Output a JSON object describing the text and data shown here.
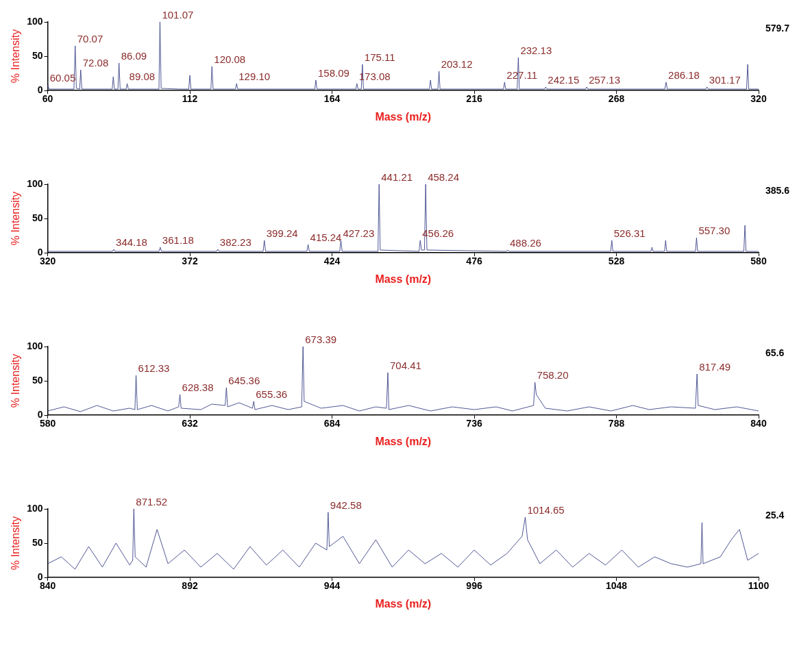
{
  "chart_data": [
    {
      "type": "line",
      "ylabel": "% Intensity",
      "xlabel": "Mass (m/z)",
      "color": "#3c4488",
      "marker": "none",
      "xlim": [
        60,
        320
      ],
      "xticks": [
        60,
        112,
        164,
        216,
        268,
        320
      ],
      "ylim": [
        0,
        100
      ],
      "yticks": [
        0,
        50,
        100
      ],
      "x": [
        60,
        60.05,
        60.5,
        65,
        69.6,
        70.07,
        70.5,
        71.7,
        72.08,
        72.5,
        80,
        83.6,
        84,
        84.4,
        85.7,
        86.09,
        86.5,
        88.7,
        89.08,
        89.5,
        95,
        100.7,
        101.07,
        101.5,
        108,
        111.6,
        112,
        112.4,
        119.7,
        120.08,
        120.5,
        128.7,
        129.1,
        129.5,
        140,
        157.7,
        158.09,
        158.5,
        172.7,
        173.08,
        173.5,
        174.7,
        175.11,
        175.5,
        190,
        199.6,
        200,
        200.4,
        202.7,
        203.12,
        203.5,
        215,
        226.7,
        227.11,
        227.5,
        231.7,
        232.13,
        232.5,
        241.7,
        242.15,
        242.6,
        256.7,
        257.13,
        257.6,
        270,
        285.7,
        286.18,
        286.6,
        300.7,
        301.17,
        301.6,
        315.6,
        316,
        316.4,
        320
      ],
      "values": [
        2,
        8,
        2,
        2,
        2,
        65,
        3,
        2,
        30,
        2,
        2,
        2,
        20,
        2,
        2,
        40,
        2,
        2,
        10,
        2,
        2,
        2,
        100,
        3,
        2,
        2,
        22,
        2,
        2,
        35,
        2,
        2,
        10,
        2,
        2,
        2,
        15,
        2,
        2,
        10,
        2,
        2,
        38,
        2,
        2,
        2,
        15,
        2,
        2,
        28,
        2,
        2,
        2,
        12,
        2,
        2,
        48,
        2,
        2,
        5,
        2,
        2,
        5,
        2,
        2,
        2,
        12,
        2,
        2,
        5,
        2,
        2,
        38,
        2,
        2
      ],
      "annotations": [
        "579.7",
        {
          "text": "60.05",
          "x": 60.05,
          "y": 8
        },
        {
          "text": "70.07",
          "x": 70.07,
          "y": 65
        },
        {
          "text": "72.08",
          "x": 72.08,
          "y": 30
        },
        {
          "text": "86.09",
          "x": 86.09,
          "y": 40
        },
        {
          "text": "89.08",
          "x": 89.08,
          "y": 10
        },
        {
          "text": "101.07",
          "x": 101.07,
          "y": 100
        },
        {
          "text": "120.08",
          "x": 120.08,
          "y": 35
        },
        {
          "text": "129.10",
          "x": 129.1,
          "y": 10
        },
        {
          "text": "158.09",
          "x": 158.09,
          "y": 15
        },
        {
          "text": "173.08",
          "x": 173.08,
          "y": 10
        },
        {
          "text": "175.11",
          "x": 175.11,
          "y": 38
        },
        {
          "text": "203.12",
          "x": 203.12,
          "y": 28
        },
        {
          "text": "227.11",
          "x": 227.11,
          "y": 12
        },
        {
          "text": "232.13",
          "x": 232.13,
          "y": 48
        },
        {
          "text": "242.15",
          "x": 242.15,
          "y": 5
        },
        {
          "text": "257.13",
          "x": 257.13,
          "y": 5
        },
        {
          "text": "286.18",
          "x": 286.18,
          "y": 12
        },
        {
          "text": "301.17",
          "x": 301.17,
          "y": 5
        }
      ]
    },
    {
      "type": "line",
      "ylabel": "% Intensity",
      "xlabel": "Mass (m/z)",
      "color": "#3c4488",
      "marker": "none",
      "xlim": [
        320,
        580
      ],
      "xticks": [
        320,
        372,
        424,
        476,
        528,
        580
      ],
      "ylim": [
        0,
        100
      ],
      "yticks": [
        0,
        50,
        100
      ],
      "x": [
        320,
        343.7,
        344.18,
        344.6,
        360.7,
        361.18,
        361.6,
        381.8,
        382.23,
        382.7,
        398.8,
        399.24,
        399.7,
        414.8,
        415.24,
        415.7,
        426.8,
        427.23,
        427.7,
        440.8,
        441.21,
        441.6,
        455.8,
        456.26,
        456.7,
        457.8,
        458.24,
        458.7,
        487.8,
        488.26,
        488.7,
        525.9,
        526.31,
        526.7,
        540.6,
        541,
        541.4,
        545.6,
        546,
        546.4,
        556.9,
        557.3,
        557.7,
        574.6,
        575,
        575.4,
        580
      ],
      "values": [
        2,
        2,
        5,
        2,
        2,
        8,
        2,
        2,
        5,
        2,
        2,
        18,
        2,
        2,
        12,
        2,
        2,
        18,
        2,
        2,
        100,
        4,
        2,
        18,
        4,
        4,
        100,
        4,
        2,
        4,
        2,
        2,
        18,
        2,
        2,
        8,
        2,
        2,
        18,
        2,
        2,
        22,
        2,
        2,
        40,
        2,
        2
      ],
      "annotations": [
        "385.6",
        {
          "text": "344.18",
          "x": 344.18,
          "y": 5
        },
        {
          "text": "361.18",
          "x": 361.18,
          "y": 8
        },
        {
          "text": "382.23",
          "x": 382.23,
          "y": 5
        },
        {
          "text": "399.24",
          "x": 399.24,
          "y": 18
        },
        {
          "text": "415.24",
          "x": 415.24,
          "y": 12
        },
        {
          "text": "427.23",
          "x": 427.23,
          "y": 18
        },
        {
          "text": "441.21",
          "x": 441.21,
          "y": 100
        },
        {
          "text": "456.26",
          "x": 456.26,
          "y": 18
        },
        {
          "text": "458.24",
          "x": 458.24,
          "y": 100
        },
        {
          "text": "488.26",
          "x": 488.26,
          "y": 4
        },
        {
          "text": "526.31",
          "x": 526.31,
          "y": 18
        },
        {
          "text": "557.30",
          "x": 557.3,
          "y": 22
        }
      ]
    },
    {
      "type": "line",
      "ylabel": "% Intensity",
      "xlabel": "Mass (m/z)",
      "color": "#3c4488",
      "marker": "none",
      "xlim": [
        580,
        840
      ],
      "xticks": [
        580,
        632,
        684,
        736,
        788,
        840
      ],
      "ylim": [
        0,
        100
      ],
      "yticks": [
        0,
        50,
        100
      ],
      "x": [
        580,
        586,
        592,
        598,
        604,
        610,
        611.9,
        612.33,
        612.8,
        618,
        624,
        627.9,
        628.38,
        628.8,
        636,
        640,
        644.9,
        645.36,
        645.8,
        650,
        654.9,
        655.36,
        655.8,
        662,
        668,
        672.9,
        673.39,
        673.8,
        680,
        688,
        694,
        700,
        703.9,
        704.41,
        704.8,
        712,
        720,
        728,
        736,
        744,
        750,
        757.7,
        758.2,
        758.7,
        762,
        770,
        778,
        786,
        794,
        800,
        808,
        816.9,
        817.49,
        817.9,
        824,
        832,
        840
      ],
      "values": [
        6,
        12,
        5,
        14,
        6,
        10,
        8,
        58,
        8,
        14,
        6,
        12,
        30,
        10,
        8,
        16,
        14,
        40,
        12,
        18,
        10,
        20,
        8,
        14,
        8,
        12,
        100,
        20,
        10,
        14,
        6,
        12,
        10,
        62,
        8,
        14,
        6,
        12,
        8,
        12,
        6,
        14,
        48,
        30,
        10,
        6,
        12,
        6,
        14,
        8,
        12,
        10,
        60,
        14,
        8,
        12,
        6
      ],
      "annotations": [
        "65.6",
        {
          "text": "612.33",
          "x": 612.33,
          "y": 58
        },
        {
          "text": "628.38",
          "x": 628.38,
          "y": 30
        },
        {
          "text": "645.36",
          "x": 645.36,
          "y": 40
        },
        {
          "text": "655.36",
          "x": 655.36,
          "y": 20
        },
        {
          "text": "673.39",
          "x": 673.39,
          "y": 100
        },
        {
          "text": "704.41",
          "x": 704.41,
          "y": 62
        },
        {
          "text": "758.20",
          "x": 758.2,
          "y": 48
        },
        {
          "text": "817.49",
          "x": 817.49,
          "y": 60
        }
      ]
    },
    {
      "type": "line",
      "ylabel": "% Intensity",
      "xlabel": "Mass (m/z)",
      "color": "#3c4488",
      "marker": "none",
      "xlim": [
        840,
        1100
      ],
      "xticks": [
        840,
        892,
        944,
        996,
        1048,
        1100
      ],
      "ylim": [
        0,
        100
      ],
      "yticks": [
        0,
        50,
        100
      ],
      "x": [
        840,
        845,
        850,
        855,
        860,
        865,
        870,
        871.1,
        871.52,
        872,
        876,
        880,
        884,
        890,
        896,
        902,
        908,
        914,
        920,
        926,
        932,
        938,
        942.1,
        942.58,
        943,
        948,
        954,
        960,
        966,
        972,
        978,
        984,
        990,
        996,
        1002,
        1008,
        1013.5,
        1014.65,
        1015.5,
        1020,
        1026,
        1032,
        1038,
        1044,
        1050,
        1056,
        1062,
        1068,
        1074,
        1078.9,
        1079.3,
        1079.7,
        1086,
        1090,
        1093,
        1096,
        1100
      ],
      "values": [
        20,
        30,
        12,
        45,
        15,
        50,
        18,
        25,
        100,
        30,
        15,
        70,
        20,
        40,
        15,
        35,
        12,
        45,
        18,
        40,
        15,
        50,
        40,
        95,
        45,
        60,
        20,
        55,
        15,
        40,
        20,
        35,
        15,
        40,
        18,
        35,
        60,
        88,
        55,
        20,
        40,
        15,
        35,
        18,
        40,
        15,
        30,
        20,
        15,
        20,
        80,
        20,
        30,
        55,
        70,
        25,
        35
      ],
      "annotations": [
        "25.4",
        {
          "text": "871.52",
          "x": 871.52,
          "y": 100
        },
        {
          "text": "942.58",
          "x": 942.58,
          "y": 95
        },
        {
          "text": "1014.65",
          "x": 1014.65,
          "y": 88
        }
      ]
    }
  ]
}
